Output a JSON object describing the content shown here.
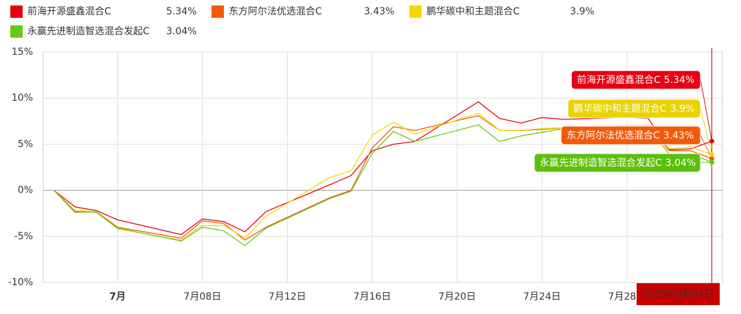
{
  "chart_data": {
    "type": "line",
    "x": [
      "2025-07-01",
      "2025-07-02",
      "2025-07-03",
      "2025-07-04",
      "2025-07-07",
      "2025-07-08",
      "2025-07-09",
      "2025-07-10",
      "2025-07-11",
      "2025-07-14",
      "2025-07-15",
      "2025-07-16",
      "2025-07-17",
      "2025-07-18",
      "2025-07-21",
      "2025-07-22",
      "2025-07-23",
      "2025-07-24",
      "2025-07-25",
      "2025-07-28",
      "2025-07-29",
      "2025-07-30",
      "2025-07-31",
      "2025-08-01"
    ],
    "series": [
      {
        "name": "前海开源盛鑫混合C",
        "color": "#e60012",
        "values": [
          0,
          -1.8,
          -2.2,
          -3.2,
          -4.8,
          -3.1,
          -3.4,
          -4.5,
          -2.3,
          0.6,
          1.6,
          4.3,
          5.0,
          5.3,
          9.6,
          7.8,
          7.3,
          7.9,
          7.7,
          7.9,
          7.8,
          4.4,
          4.5,
          5.34
        ],
        "value_labels": [
          null,
          null,
          null,
          null,
          null,
          null,
          null,
          null,
          null,
          null,
          null,
          null,
          null,
          null,
          null,
          null,
          null,
          null,
          null,
          null,
          null,
          null,
          null,
          "5.34%"
        ]
      },
      {
        "name": "东方阿尔法优选混合C",
        "color": "#f25a0a",
        "values": [
          0,
          -2.4,
          -2.3,
          -4.0,
          -5.2,
          -3.3,
          -3.6,
          -5.4,
          -4.0,
          -0.8,
          0.0,
          4.6,
          6.9,
          6.5,
          8.1,
          6.5,
          6.5,
          6.6,
          6.8,
          7.0,
          7.0,
          4.3,
          4.3,
          3.43
        ],
        "value_labels": [
          null,
          null,
          null,
          null,
          null,
          null,
          null,
          null,
          null,
          null,
          null,
          null,
          null,
          null,
          null,
          null,
          null,
          null,
          null,
          null,
          null,
          null,
          null,
          "3.43%"
        ]
      },
      {
        "name": "鹏华碳中和主题混合C",
        "color": "#f0dc00",
        "values": [
          0,
          -2.2,
          -2.3,
          -4.2,
          -5.4,
          -3.8,
          -3.8,
          -5.2,
          -2.8,
          1.4,
          2.1,
          6.0,
          7.4,
          6.1,
          8.4,
          6.5,
          6.5,
          6.7,
          6.8,
          7.0,
          7.0,
          4.5,
          4.7,
          3.9
        ],
        "value_labels": [
          null,
          null,
          null,
          null,
          null,
          null,
          null,
          null,
          null,
          null,
          null,
          null,
          null,
          null,
          null,
          null,
          null,
          null,
          null,
          null,
          null,
          null,
          null,
          "3.9%"
        ]
      },
      {
        "name": "永赢先进制造智选混合发起C",
        "color": "#66c814",
        "values": [
          0,
          -2.3,
          -2.4,
          -4.1,
          -5.5,
          -4.0,
          -4.4,
          -6.0,
          -4.1,
          -0.9,
          -0.1,
          4.0,
          6.4,
          5.3,
          7.1,
          5.3,
          5.9,
          6.3,
          6.7,
          6.9,
          6.9,
          3.9,
          4.0,
          3.04
        ],
        "value_labels": [
          null,
          null,
          null,
          null,
          null,
          null,
          null,
          null,
          null,
          null,
          null,
          null,
          null,
          null,
          null,
          null,
          null,
          null,
          null,
          null,
          null,
          null,
          null,
          "3.04%"
        ]
      }
    ],
    "xlim": [
      "2025-06-30T12:00:00Z",
      "2025-08-01T12:00:00Z"
    ],
    "xticks": [
      {
        "value": "2025-07-04",
        "label": "7月"
      },
      {
        "value": "2025-07-08",
        "label": "7月08日"
      },
      {
        "value": "2025-07-12",
        "label": "7月12日"
      },
      {
        "value": "2025-07-16",
        "label": "7月16日"
      },
      {
        "value": "2025-07-20",
        "label": "7月20日"
      },
      {
        "value": "2025-07-24",
        "label": "7月24日"
      },
      {
        "value": "2025-07-28",
        "label": "7月28日"
      }
    ],
    "ylim": [
      -10,
      15
    ],
    "yticks": [
      {
        "value": -10,
        "label": "-10%"
      },
      {
        "value": -5,
        "label": "-5%"
      },
      {
        "value": 0,
        "label": "0%"
      },
      {
        "value": 5,
        "label": "5%"
      },
      {
        "value": 10,
        "label": "10%"
      },
      {
        "value": 15,
        "label": "15%"
      }
    ],
    "grid": true,
    "crosshair_label": "2025年8月01日"
  }
}
